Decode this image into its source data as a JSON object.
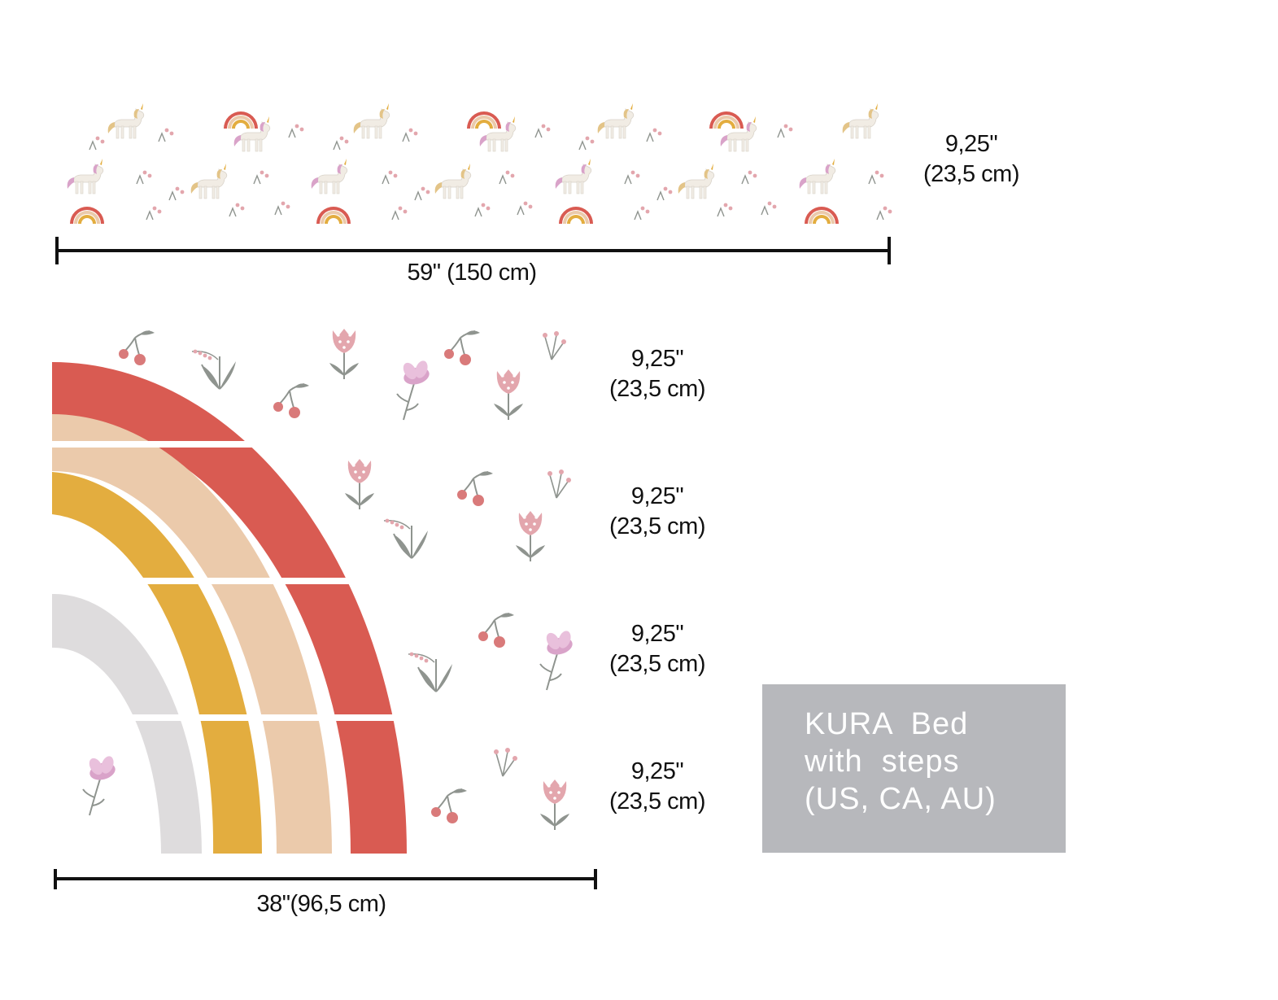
{
  "top_panel": {
    "height_label": {
      "line1": "9,25\"",
      "line2": "(23,5 cm)"
    },
    "width_label": "59\"  (150 cm)"
  },
  "rainbow_panel": {
    "rows": [
      {
        "line1": "9,25\"",
        "line2": "(23,5 cm)"
      },
      {
        "line1": "9,25\"",
        "line2": "(23,5 cm)"
      },
      {
        "line1": "9,25\"",
        "line2": "(23,5 cm)"
      },
      {
        "line1": "9,25\"",
        "line2": "(23,5 cm)"
      }
    ],
    "width_label": "38\"(96,5 cm)"
  },
  "note_box": {
    "line1": "KURA  Bed",
    "line2": "with  steps",
    "line3": "(US, CA, AU)"
  },
  "colors": {
    "red": "#d95b52",
    "peach": "#ebcaab",
    "mustard": "#e3ad3f",
    "grey": "#dedcdd",
    "pink": "#e3a6ad",
    "lilac": "#d9a3c9",
    "stem": "#8f948f",
    "box": "#b7b8bc"
  }
}
